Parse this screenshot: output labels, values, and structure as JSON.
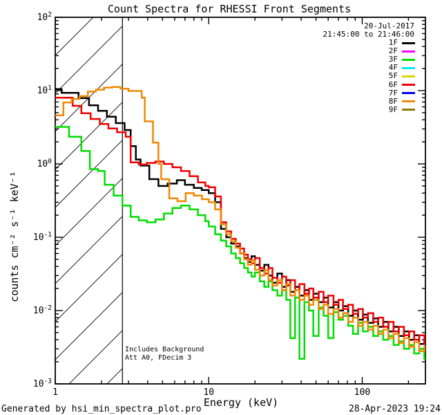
{
  "chart_data": {
    "type": "line-step-loglog",
    "title": "Count Spectra for RHESSI Front Segments",
    "xlabel": "Energy (keV)",
    "ylabel": "counts cm⁻² s⁻¹ keV⁻¹",
    "date_label": "20-Jul-2017",
    "time_label": "21:45:00 to 21:46:00",
    "annotations": {
      "line1": "Includes Background",
      "line2": "Att A0, FDecim 3"
    },
    "x_axis": {
      "min": 1,
      "max": 258,
      "tick_values": [
        1,
        10,
        100
      ],
      "tick_labels": [
        "1",
        "10",
        "100"
      ],
      "scale": "log"
    },
    "y_axis": {
      "min": 0.001,
      "max": 100,
      "tick_exponents": [
        2,
        1,
        0,
        -1,
        -2,
        -3
      ],
      "scale": "log"
    },
    "grid": false,
    "hatch_region": {
      "min_kev": 1,
      "max_kev": 2.74,
      "style": "diagonal-lines"
    },
    "legend_position": "top-right-inside",
    "legend": [
      {
        "label": "1F",
        "color": "#000000"
      },
      {
        "label": "2F",
        "color": "#ff00ff"
      },
      {
        "label": "3F",
        "color": "#00dd00"
      },
      {
        "label": "4F",
        "color": "#00eeee"
      },
      {
        "label": "5F",
        "color": "#d8d800"
      },
      {
        "label": "6F",
        "color": "#ee0000"
      },
      {
        "label": "7F",
        "color": "#0000ee"
      },
      {
        "label": "8F",
        "color": "#ee8800"
      },
      {
        "label": "9F",
        "color": "#8f7a00"
      }
    ],
    "series": [
      {
        "name": "1F",
        "color": "#000000",
        "points": [
          [
            1.0,
            10.5
          ],
          [
            1.1,
            9.3
          ],
          [
            1.42,
            7.9
          ],
          [
            1.66,
            6.3
          ],
          [
            1.9,
            5.3
          ],
          [
            2.17,
            4.4
          ],
          [
            2.48,
            3.6
          ],
          [
            2.83,
            2.9
          ],
          [
            3.1,
            1.75
          ],
          [
            3.35,
            1.15
          ],
          [
            3.6,
            0.95
          ],
          [
            4.1,
            0.62
          ],
          [
            4.7,
            0.5
          ],
          [
            5.4,
            0.54
          ],
          [
            6.2,
            0.6
          ],
          [
            7.0,
            0.52
          ],
          [
            8.0,
            0.47
          ],
          [
            9.0,
            0.44
          ],
          [
            10,
            0.4
          ],
          [
            11,
            0.3
          ],
          [
            12,
            0.13
          ],
          [
            13,
            0.1
          ],
          [
            14,
            0.082
          ],
          [
            15,
            0.075
          ],
          [
            16,
            0.06
          ],
          [
            17,
            0.052
          ],
          [
            18,
            0.046
          ],
          [
            19,
            0.055
          ],
          [
            20,
            0.042
          ],
          [
            21.5,
            0.035
          ],
          [
            23,
            0.042
          ],
          [
            24.5,
            0.03
          ],
          [
            26,
            0.024
          ],
          [
            28,
            0.032
          ],
          [
            30,
            0.021
          ],
          [
            32,
            0.026
          ],
          [
            34,
            0.018
          ],
          [
            36.5,
            0.021
          ],
          [
            39,
            0.016
          ],
          [
            42,
            0.019
          ],
          [
            45,
            0.014
          ],
          [
            48,
            0.017
          ],
          [
            52,
            0.013
          ],
          [
            56,
            0.015
          ],
          [
            60,
            0.011
          ],
          [
            65,
            0.013
          ],
          [
            70,
            0.01
          ],
          [
            75,
            0.0115
          ],
          [
            81,
            0.0085
          ],
          [
            87,
            0.01
          ],
          [
            94,
            0.0075
          ],
          [
            101,
            0.0088
          ],
          [
            109,
            0.0068
          ],
          [
            118,
            0.0078
          ],
          [
            127,
            0.006
          ],
          [
            137,
            0.007
          ],
          [
            148,
            0.0052
          ],
          [
            160,
            0.006
          ],
          [
            173,
            0.0045
          ],
          [
            187,
            0.0052
          ],
          [
            202,
            0.004
          ],
          [
            218,
            0.0046
          ],
          [
            235,
            0.0035
          ],
          [
            254,
            0.004
          ],
          [
            274,
            0.0032
          ],
          [
            296,
            0.0028
          ]
        ]
      },
      {
        "name": "3F",
        "color": "#00dd00",
        "points": [
          [
            1.0,
            3.2
          ],
          [
            1.23,
            2.35
          ],
          [
            1.48,
            1.5
          ],
          [
            1.68,
            0.85
          ],
          [
            1.9,
            0.8
          ],
          [
            2.1,
            0.52
          ],
          [
            2.4,
            0.37
          ],
          [
            2.74,
            0.27
          ],
          [
            3.1,
            0.19
          ],
          [
            3.5,
            0.17
          ],
          [
            3.95,
            0.16
          ],
          [
            4.5,
            0.175
          ],
          [
            5.1,
            0.21
          ],
          [
            5.8,
            0.25
          ],
          [
            6.6,
            0.27
          ],
          [
            7.5,
            0.24
          ],
          [
            8.5,
            0.2
          ],
          [
            9.5,
            0.165
          ],
          [
            10,
            0.14
          ],
          [
            11,
            0.11
          ],
          [
            12,
            0.09
          ],
          [
            13,
            0.075
          ],
          [
            14,
            0.06
          ],
          [
            15,
            0.052
          ],
          [
            16,
            0.044
          ],
          [
            17,
            0.038
          ],
          [
            18,
            0.033
          ],
          [
            19,
            0.029
          ],
          [
            20,
            0.033
          ],
          [
            21.5,
            0.025
          ],
          [
            23,
            0.021
          ],
          [
            24.5,
            0.025
          ],
          [
            26,
            0.019
          ],
          [
            28,
            0.016
          ],
          [
            30,
            0.019
          ],
          [
            32,
            0.014
          ],
          [
            34,
            0.0042
          ],
          [
            36.5,
            0.015
          ],
          [
            39,
            0.0022
          ],
          [
            42,
            0.013
          ],
          [
            45,
            0.01
          ],
          [
            48,
            0.0045
          ],
          [
            52,
            0.011
          ],
          [
            56,
            0.0085
          ],
          [
            60,
            0.0042
          ],
          [
            65,
            0.0095
          ],
          [
            70,
            0.0075
          ],
          [
            75,
            0.0085
          ],
          [
            81,
            0.0062
          ],
          [
            87,
            0.0048
          ],
          [
            94,
            0.0068
          ],
          [
            101,
            0.0052
          ],
          [
            109,
            0.006
          ],
          [
            118,
            0.0045
          ],
          [
            127,
            0.0052
          ],
          [
            137,
            0.004
          ],
          [
            148,
            0.0045
          ],
          [
            160,
            0.0034
          ],
          [
            173,
            0.0038
          ],
          [
            187,
            0.003
          ],
          [
            202,
            0.0034
          ],
          [
            218,
            0.0026
          ],
          [
            235,
            0.003
          ],
          [
            254,
            0.0022
          ],
          [
            274,
            0.0018
          ],
          [
            296,
            0.0013
          ]
        ]
      },
      {
        "name": "6F",
        "color": "#ee0000",
        "points": [
          [
            1.0,
            8.0
          ],
          [
            1.3,
            6.2
          ],
          [
            1.48,
            4.9
          ],
          [
            1.7,
            4.1
          ],
          [
            1.95,
            3.5
          ],
          [
            2.22,
            3.05
          ],
          [
            2.53,
            2.7
          ],
          [
            2.88,
            2.35
          ],
          [
            3.1,
            1.05
          ],
          [
            3.5,
            0.98
          ],
          [
            3.95,
            1.03
          ],
          [
            4.5,
            1.08
          ],
          [
            5.1,
            1.0
          ],
          [
            5.8,
            0.9
          ],
          [
            6.6,
            0.8
          ],
          [
            7.5,
            0.68
          ],
          [
            8.5,
            0.56
          ],
          [
            9.5,
            0.5
          ],
          [
            10,
            0.48
          ],
          [
            11,
            0.36
          ],
          [
            12,
            0.16
          ],
          [
            13,
            0.12
          ],
          [
            14,
            0.095
          ],
          [
            15,
            0.082
          ],
          [
            16,
            0.07
          ],
          [
            17,
            0.058
          ],
          [
            18,
            0.05
          ],
          [
            19,
            0.044
          ],
          [
            20,
            0.052
          ],
          [
            21.5,
            0.038
          ],
          [
            23,
            0.032
          ],
          [
            24.5,
            0.038
          ],
          [
            26,
            0.028
          ],
          [
            28,
            0.024
          ],
          [
            30,
            0.029
          ],
          [
            32,
            0.022
          ],
          [
            34,
            0.026
          ],
          [
            36.5,
            0.019
          ],
          [
            39,
            0.023
          ],
          [
            42,
            0.017
          ],
          [
            45,
            0.02
          ],
          [
            48,
            0.015
          ],
          [
            52,
            0.018
          ],
          [
            56,
            0.013
          ],
          [
            60,
            0.016
          ],
          [
            65,
            0.012
          ],
          [
            70,
            0.014
          ],
          [
            75,
            0.0105
          ],
          [
            81,
            0.012
          ],
          [
            87,
            0.009
          ],
          [
            94,
            0.0105
          ],
          [
            101,
            0.008
          ],
          [
            109,
            0.0092
          ],
          [
            118,
            0.007
          ],
          [
            127,
            0.008
          ],
          [
            137,
            0.006
          ],
          [
            148,
            0.007
          ],
          [
            160,
            0.0052
          ],
          [
            173,
            0.006
          ],
          [
            187,
            0.0046
          ],
          [
            202,
            0.0052
          ],
          [
            218,
            0.004
          ],
          [
            235,
            0.0046
          ],
          [
            254,
            0.0035
          ],
          [
            274,
            0.004
          ],
          [
            296,
            0.0032
          ]
        ]
      },
      {
        "name": "8F",
        "color": "#ee8800",
        "points": [
          [
            1.0,
            4.6
          ],
          [
            1.13,
            6.9
          ],
          [
            1.28,
            7.7
          ],
          [
            1.44,
            8.4
          ],
          [
            1.63,
            9.7
          ],
          [
            1.84,
            10.3
          ],
          [
            2.08,
            11.0
          ],
          [
            2.35,
            11.2
          ],
          [
            2.66,
            10.6
          ],
          [
            3.0,
            9.9
          ],
          [
            3.39,
            9.9
          ],
          [
            3.66,
            8.0
          ],
          [
            3.83,
            3.8
          ],
          [
            4.33,
            1.95
          ],
          [
            4.7,
            1.0
          ],
          [
            4.9,
            0.62
          ],
          [
            5.53,
            0.34
          ],
          [
            6.25,
            0.31
          ],
          [
            7.07,
            0.4
          ],
          [
            7.99,
            0.37
          ],
          [
            9.03,
            0.33
          ],
          [
            10,
            0.3
          ],
          [
            11,
            0.24
          ],
          [
            12,
            0.15
          ],
          [
            13,
            0.11
          ],
          [
            14,
            0.088
          ],
          [
            15,
            0.072
          ],
          [
            16,
            0.06
          ],
          [
            17,
            0.05
          ],
          [
            18,
            0.042
          ],
          [
            19,
            0.048
          ],
          [
            20,
            0.036
          ],
          [
            21.5,
            0.03
          ],
          [
            23,
            0.035
          ],
          [
            24.5,
            0.026
          ],
          [
            26,
            0.022
          ],
          [
            28,
            0.026
          ],
          [
            30,
            0.019
          ],
          [
            32,
            0.023
          ],
          [
            34,
            0.016
          ],
          [
            36.5,
            0.019
          ],
          [
            39,
            0.014
          ],
          [
            42,
            0.016
          ],
          [
            45,
            0.012
          ],
          [
            48,
            0.014
          ],
          [
            52,
            0.0105
          ],
          [
            56,
            0.012
          ],
          [
            60,
            0.009
          ],
          [
            65,
            0.0105
          ],
          [
            70,
            0.008
          ],
          [
            75,
            0.0092
          ],
          [
            81,
            0.007
          ],
          [
            87,
            0.008
          ],
          [
            94,
            0.0062
          ],
          [
            101,
            0.007
          ],
          [
            109,
            0.0055
          ],
          [
            118,
            0.0062
          ],
          [
            127,
            0.0048
          ],
          [
            137,
            0.0055
          ],
          [
            148,
            0.0042
          ],
          [
            160,
            0.0048
          ],
          [
            173,
            0.0036
          ],
          [
            187,
            0.0042
          ],
          [
            202,
            0.0032
          ],
          [
            218,
            0.0037
          ],
          [
            235,
            0.0028
          ],
          [
            254,
            0.0032
          ],
          [
            274,
            0.0024
          ],
          [
            296,
            0.002
          ]
        ]
      }
    ]
  },
  "footer": {
    "generated_by": "Generated by hsi_min_spectra_plot.pro",
    "timestamp": "28-Apr-2023 19:24"
  }
}
